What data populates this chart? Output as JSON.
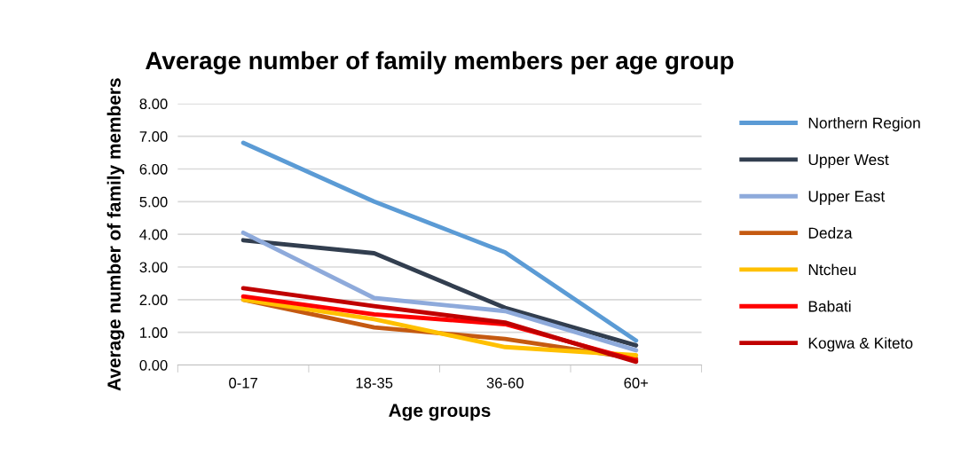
{
  "chart_data": {
    "type": "line",
    "title": "Average number of family members per age group",
    "xlabel": "Age groups",
    "ylabel": "Average number of family members",
    "categories": [
      "0-17",
      "18-35",
      "36-60",
      "60+"
    ],
    "series": [
      {
        "name": "Northern Region",
        "color": "#5b9bd5",
        "values": [
          6.8,
          5.0,
          3.45,
          0.75
        ]
      },
      {
        "name": "Upper West",
        "color": "#323e4f",
        "values": [
          3.82,
          3.42,
          1.75,
          0.6
        ]
      },
      {
        "name": "Upper East",
        "color": "#8eaadb",
        "values": [
          4.05,
          2.05,
          1.65,
          0.45
        ]
      },
      {
        "name": "Dedza",
        "color": "#c55a11",
        "values": [
          2.0,
          1.15,
          0.8,
          0.2
        ]
      },
      {
        "name": "Ntcheu",
        "color": "#ffc000",
        "values": [
          2.0,
          1.4,
          0.55,
          0.3
        ]
      },
      {
        "name": "Babati",
        "color": "#ff0000",
        "values": [
          2.1,
          1.55,
          1.25,
          0.15
        ]
      },
      {
        "name": "Kogwa & Kiteto",
        "color": "#c00000",
        "values": [
          2.35,
          1.8,
          1.3,
          0.1
        ]
      }
    ],
    "ylim": [
      0,
      8
    ],
    "yticks": [
      {
        "value": 0,
        "label": "0.00"
      },
      {
        "value": 1,
        "label": "1.00"
      },
      {
        "value": 2,
        "label": "2.00"
      },
      {
        "value": 3,
        "label": "3.00"
      },
      {
        "value": 4,
        "label": "4.00"
      },
      {
        "value": 5,
        "label": "5.00"
      },
      {
        "value": 6,
        "label": "6.00"
      },
      {
        "value": 7,
        "label": "7.00"
      },
      {
        "value": 8,
        "label": "8.00"
      }
    ],
    "grid": "y",
    "legend": "right",
    "marker": "none",
    "line_style": "solid"
  }
}
